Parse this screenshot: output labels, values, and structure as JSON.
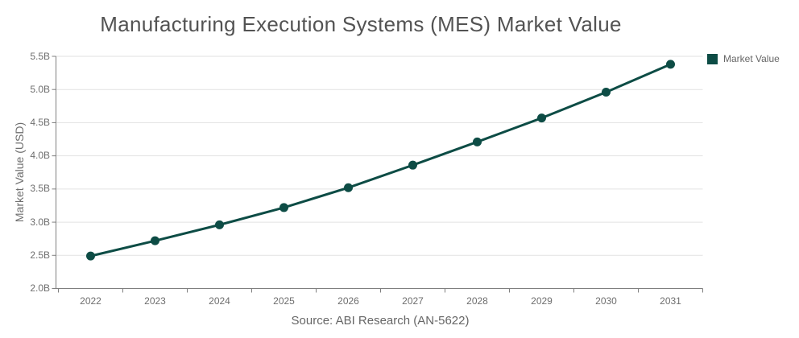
{
  "colors": {
    "series": "#0d4c45",
    "grid": "#e2e2e2",
    "axis": "#7f7f7f",
    "tick_text": "#6e6e6e",
    "title_text": "#535353",
    "source_text": "#666666",
    "background": "#ffffff"
  },
  "legend": {
    "position": "top-right",
    "items": [
      {
        "label": "Market Value",
        "swatch": "square",
        "color": "#0d4c45"
      }
    ]
  },
  "chart_data": {
    "type": "line",
    "title": "Manufacturing Execution Systems (MES) Market Value",
    "x": [
      "2022",
      "2023",
      "2024",
      "2025",
      "2026",
      "2027",
      "2028",
      "2029",
      "2030",
      "2031"
    ],
    "series": [
      {
        "name": "Market Value",
        "values": [
          2.49,
          2.72,
          2.96,
          3.22,
          3.52,
          3.86,
          4.21,
          4.57,
          4.96,
          5.38
        ],
        "unit": "B USD",
        "color": "#0d4c45",
        "markers": true
      }
    ],
    "xlabel": "",
    "ylabel": "Market Value (USD)",
    "ylim": [
      2.0,
      5.5
    ],
    "y_ticks": [
      {
        "value": 5.5,
        "label": "5.5B"
      },
      {
        "value": 5.0,
        "label": "5.0B"
      },
      {
        "value": 4.5,
        "label": "4.5B"
      },
      {
        "value": 4.0,
        "label": "4.0B"
      },
      {
        "value": 3.5,
        "label": "3.5B"
      },
      {
        "value": 3.0,
        "label": "3.0B"
      },
      {
        "value": 2.5,
        "label": "2.5B"
      },
      {
        "value": 2.0,
        "label": "2.0B"
      }
    ],
    "grid": "horizontal",
    "legend_position": "top-right",
    "source": "Source: ABI Research (AN-5622)"
  }
}
